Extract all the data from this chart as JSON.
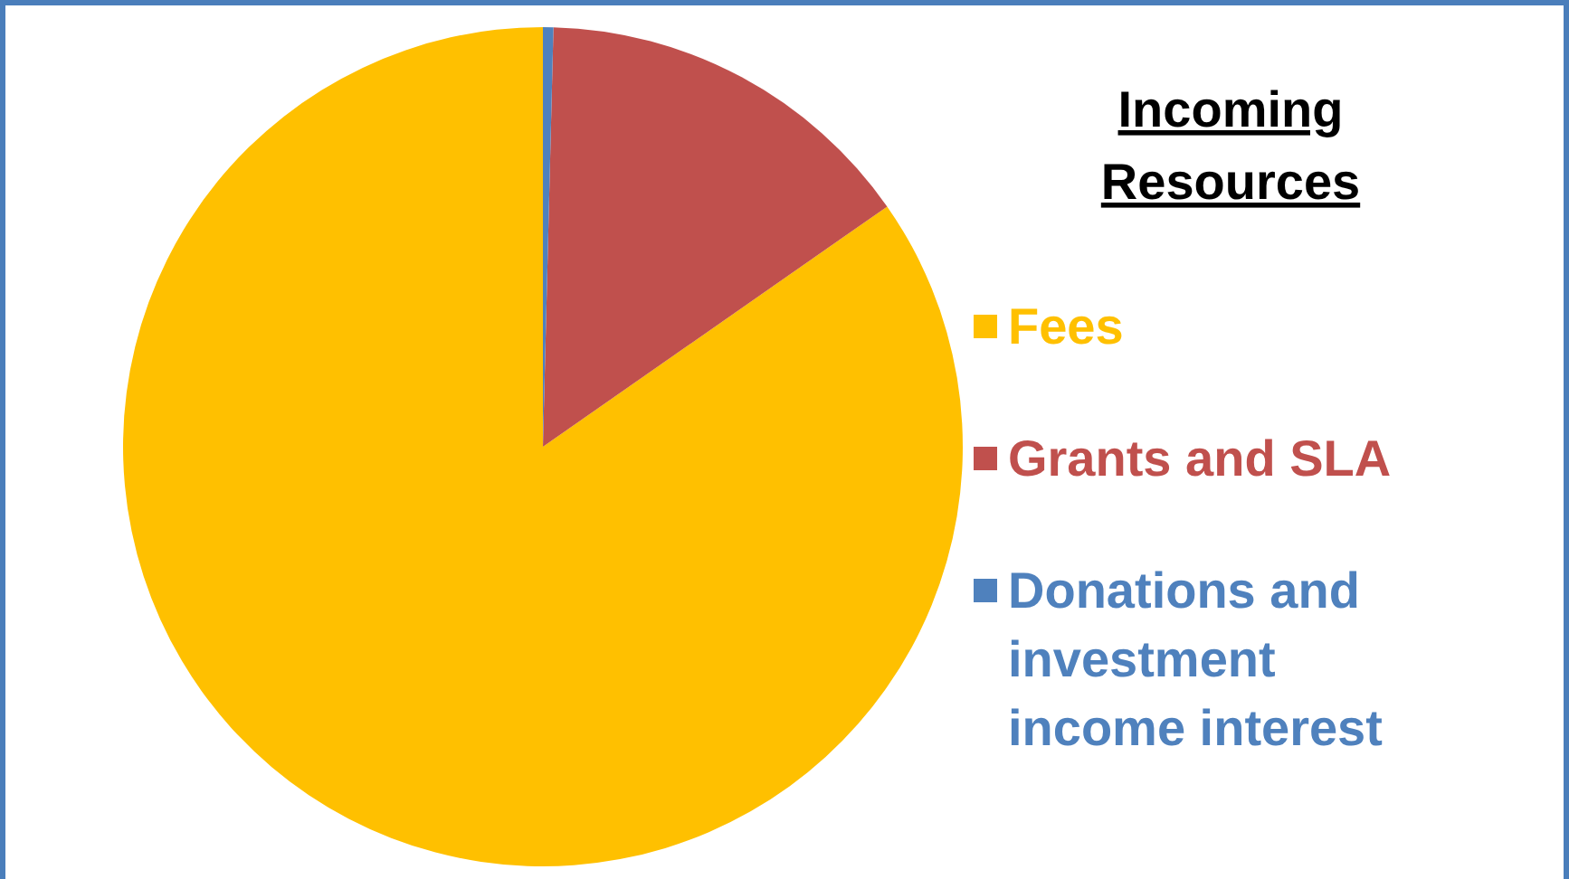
{
  "chart_data": {
    "type": "pie",
    "title": "Incoming Resources",
    "categories": [
      "Fees",
      "Grants and SLA",
      "Donations and investment income interest"
    ],
    "values": [
      84.7,
      14.9,
      0.4
    ],
    "colors": [
      "#ffc000",
      "#c0504d",
      "#4f81bd"
    ],
    "legend": "right"
  }
}
